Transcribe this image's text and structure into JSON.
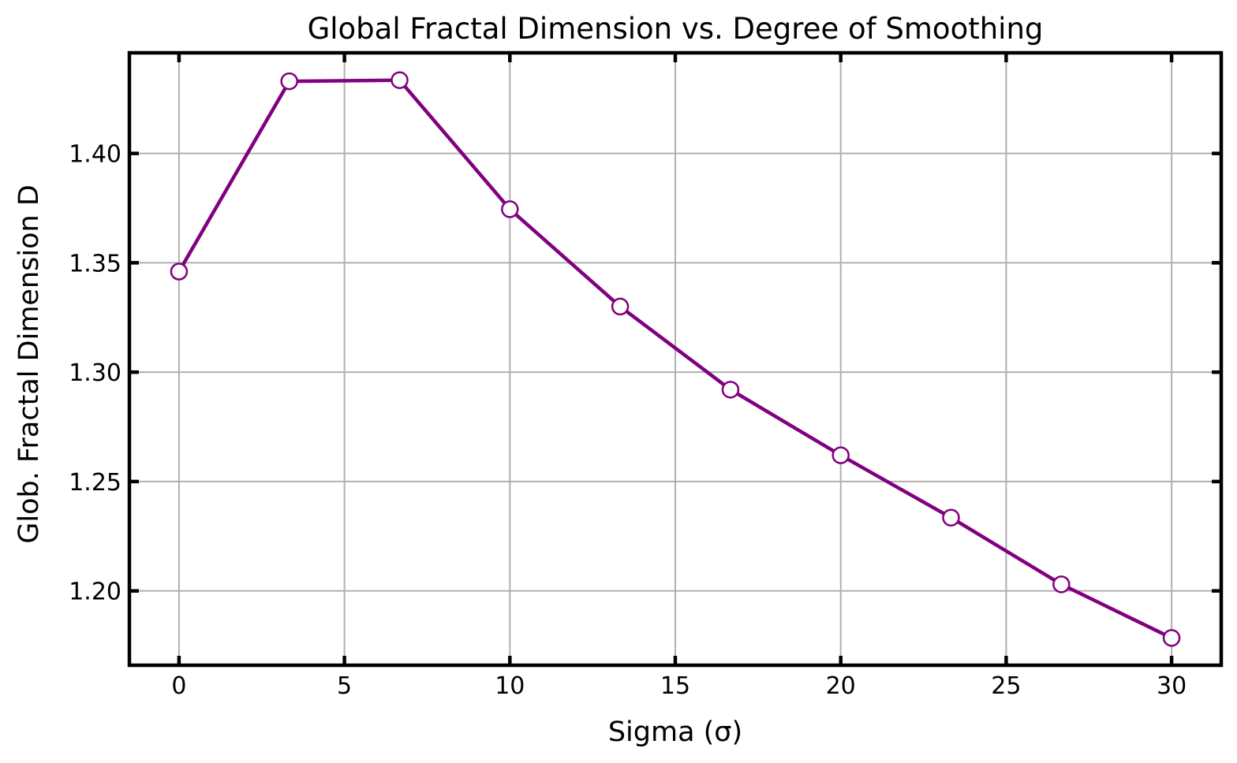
{
  "chart_data": {
    "type": "line",
    "title": "Global Fractal Dimension vs. Degree of Smoothing",
    "xlabel": "Sigma (σ)",
    "ylabel": "Glob. Fractal Dimension D",
    "xlim": [
      -1.5,
      31.5
    ],
    "ylim": [
      1.166,
      1.446
    ],
    "xticks": [
      0,
      5,
      10,
      15,
      20,
      25,
      30
    ],
    "xtick_labels": [
      "0",
      "5",
      "10",
      "15",
      "20",
      "25",
      "30"
    ],
    "yticks": [
      1.2,
      1.25,
      1.3,
      1.35,
      1.4
    ],
    "ytick_labels": [
      "1.20",
      "1.25",
      "1.30",
      "1.35",
      "1.40"
    ],
    "grid": true,
    "series": [
      {
        "x": [
          0.0,
          3.333,
          6.667,
          10.0,
          13.333,
          16.667,
          20.0,
          23.333,
          26.667,
          30.0
        ],
        "y": [
          1.346,
          1.433,
          1.4335,
          1.3745,
          1.33,
          1.292,
          1.262,
          1.2335,
          1.203,
          1.1785
        ],
        "color": "#800080",
        "marker": "circle-open"
      }
    ]
  }
}
